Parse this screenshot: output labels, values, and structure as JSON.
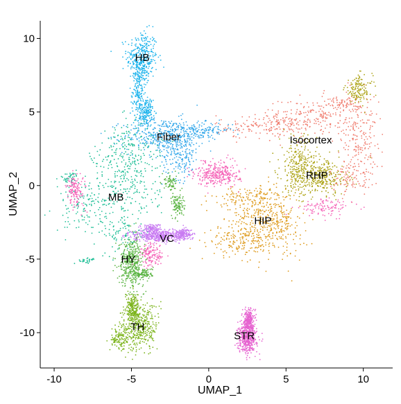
{
  "chart_data": {
    "type": "scatter",
    "title": "",
    "xlabel": "UMAP_1",
    "ylabel": "UMAP_2",
    "xlim": [
      -10.9,
      11.9
    ],
    "ylim": [
      -12.4,
      11.2
    ],
    "x_ticks": [
      -10,
      -5,
      0,
      5,
      10
    ],
    "x_tick_labels": [
      "-10",
      "-5",
      "0",
      "5",
      "10"
    ],
    "y_ticks": [
      -10,
      -5,
      0,
      5,
      10
    ],
    "y_tick_labels": [
      "-10",
      "-5",
      "0",
      "5",
      "10"
    ],
    "grid": false,
    "legend": "none",
    "series": [
      {
        "name": "HB",
        "color": "#1FB4EC",
        "label_position": [
          -4.3,
          8.7
        ],
        "regions": [
          {
            "center": [
              -4.3,
              8.7
            ],
            "spread": [
              0.5,
              0.9
            ],
            "weight": 0.45
          },
          {
            "center": [
              -4.5,
              6.6
            ],
            "spread": [
              0.22,
              1.3
            ],
            "weight": 0.35
          },
          {
            "center": [
              -4.0,
              5.0
            ],
            "spread": [
              0.2,
              0.5
            ],
            "weight": 0.2
          }
        ]
      },
      {
        "name": "Fiber",
        "color": "#33A7EA",
        "label_position": [
          -2.6,
          3.3
        ],
        "regions": [
          {
            "center": [
              -2.9,
              3.4
            ],
            "spread": [
              1.3,
              0.6
            ],
            "weight": 0.55
          },
          {
            "center": [
              -1.8,
              2.0
            ],
            "spread": [
              0.6,
              0.8
            ],
            "weight": 0.25
          },
          {
            "center": [
              -0.4,
              3.8
            ],
            "spread": [
              1.0,
              0.25
            ],
            "weight": 0.2
          }
        ]
      },
      {
        "name": "Isocortex",
        "color": "#F07C6E",
        "label_position": [
          6.6,
          3.1
        ],
        "regions": [
          {
            "center": [
              6.5,
              4.6
            ],
            "spread": [
              1.6,
              0.7
            ],
            "weight": 0.3
          },
          {
            "center": [
              9.7,
              3.5
            ],
            "spread": [
              0.6,
              1.4
            ],
            "weight": 0.25
          },
          {
            "center": [
              3.7,
              4.0
            ],
            "spread": [
              1.6,
              0.4
            ],
            "weight": 0.2
          },
          {
            "center": [
              9.2,
              0.6
            ],
            "spread": [
              0.7,
              0.6
            ],
            "weight": 0.15
          },
          {
            "center": [
              8.5,
              5.5
            ],
            "spread": [
              0.9,
              0.3
            ],
            "weight": 0.1
          }
        ]
      },
      {
        "name": "RHP",
        "color": "#ACA316",
        "label_position": [
          7.0,
          0.7
        ],
        "regions": [
          {
            "center": [
              7.2,
              0.6
            ],
            "spread": [
              0.9,
              0.6
            ],
            "weight": 0.45
          },
          {
            "center": [
              5.8,
              1.4
            ],
            "spread": [
              0.6,
              1.0
            ],
            "weight": 0.35
          },
          {
            "center": [
              9.7,
              6.5
            ],
            "spread": [
              0.45,
              0.5
            ],
            "weight": 0.2
          }
        ]
      },
      {
        "name": "HIP",
        "color": "#DE9A1C",
        "label_position": [
          3.5,
          -2.4
        ],
        "regions": [
          {
            "center": [
              3.5,
              -2.4
            ],
            "spread": [
              1.0,
              1.0
            ],
            "weight": 0.5
          },
          {
            "center": [
              1.8,
              -3.8
            ],
            "spread": [
              0.9,
              0.5
            ],
            "weight": 0.2
          },
          {
            "center": [
              2.3,
              -0.9
            ],
            "spread": [
              1.0,
              0.5
            ],
            "weight": 0.15
          },
          {
            "center": [
              4.9,
              -2.6
            ],
            "spread": [
              0.7,
              1.2
            ],
            "weight": 0.15
          }
        ]
      },
      {
        "name": "MB",
        "color": "#1EBE96",
        "label_position": [
          -6.0,
          -0.8
        ],
        "regions": [
          {
            "center": [
              -5.3,
              0.2
            ],
            "spread": [
              1.1,
              1.8
            ],
            "weight": 0.45
          },
          {
            "center": [
              -5.0,
              2.5
            ],
            "spread": [
              0.9,
              0.9
            ],
            "weight": 0.15
          },
          {
            "center": [
              -8.0,
              -1.4
            ],
            "spread": [
              1.0,
              0.9
            ],
            "weight": 0.2
          },
          {
            "center": [
              -5.4,
              -3.5
            ],
            "spread": [
              0.6,
              0.7
            ],
            "weight": 0.1
          },
          {
            "center": [
              -7.9,
              -5.1
            ],
            "spread": [
              0.3,
              0.1
            ],
            "weight": 0.04
          },
          {
            "center": [
              -9.0,
              0.5
            ],
            "spread": [
              0.3,
              0.2
            ],
            "weight": 0.06
          }
        ]
      },
      {
        "name": "HY",
        "color": "#5CB545",
        "label_position": [
          -5.2,
          -5.0
        ],
        "regions": [
          {
            "center": [
              -5.0,
              -5.2
            ],
            "spread": [
              0.4,
              0.8
            ],
            "weight": 0.6
          },
          {
            "center": [
              -2.0,
              -1.3
            ],
            "spread": [
              0.2,
              0.4
            ],
            "weight": 0.15
          },
          {
            "center": [
              -2.5,
              0.2
            ],
            "spread": [
              0.2,
              0.3
            ],
            "weight": 0.1
          },
          {
            "center": [
              -4.2,
              -6.0
            ],
            "spread": [
              0.3,
              0.2
            ],
            "weight": 0.15
          }
        ]
      },
      {
        "name": "VC",
        "color": "#C97CF2",
        "label_position": [
          -2.7,
          -3.6
        ],
        "regions": [
          {
            "center": [
              -3.3,
              -3.4
            ],
            "spread": [
              0.8,
              0.2
            ],
            "weight": 0.6
          },
          {
            "center": [
              -1.7,
              -3.3
            ],
            "spread": [
              0.3,
              0.2
            ],
            "weight": 0.25
          },
          {
            "center": [
              -3.7,
              -2.9
            ],
            "spread": [
              0.3,
              0.15
            ],
            "weight": 0.15
          }
        ]
      },
      {
        "name": "TH",
        "color": "#7CB41C",
        "label_position": [
          -4.6,
          -9.6
        ],
        "regions": [
          {
            "center": [
              -4.5,
              -9.6
            ],
            "spread": [
              0.6,
              0.8
            ],
            "weight": 0.6
          },
          {
            "center": [
              -4.9,
              -8.3
            ],
            "spread": [
              0.2,
              0.5
            ],
            "weight": 0.25
          },
          {
            "center": [
              -5.8,
              -10.5
            ],
            "spread": [
              0.3,
              0.35
            ],
            "weight": 0.15
          }
        ]
      },
      {
        "name": "STR",
        "color": "#E663D0",
        "label_position": [
          2.3,
          -10.2
        ],
        "regions": [
          {
            "center": [
              2.5,
              -10.4
            ],
            "spread": [
              0.3,
              0.5
            ],
            "weight": 0.6
          },
          {
            "center": [
              2.6,
              -9.2
            ],
            "spread": [
              0.15,
              0.4
            ],
            "weight": 0.4
          }
        ]
      },
      {
        "name": "",
        "color": "#F564B8",
        "regions": [
          {
            "center": [
              0.6,
              0.8
            ],
            "spread": [
              0.7,
              0.4
            ],
            "weight": 0.45
          },
          {
            "center": [
              -8.6,
              -0.3
            ],
            "spread": [
              0.3,
              0.6
            ],
            "weight": 0.2
          },
          {
            "center": [
              -3.7,
              -4.7
            ],
            "spread": [
              0.4,
              0.4
            ],
            "weight": 0.2
          },
          {
            "center": [
              7.6,
              -1.5
            ],
            "spread": [
              0.8,
              0.3
            ],
            "weight": 0.15
          }
        ]
      }
    ]
  }
}
